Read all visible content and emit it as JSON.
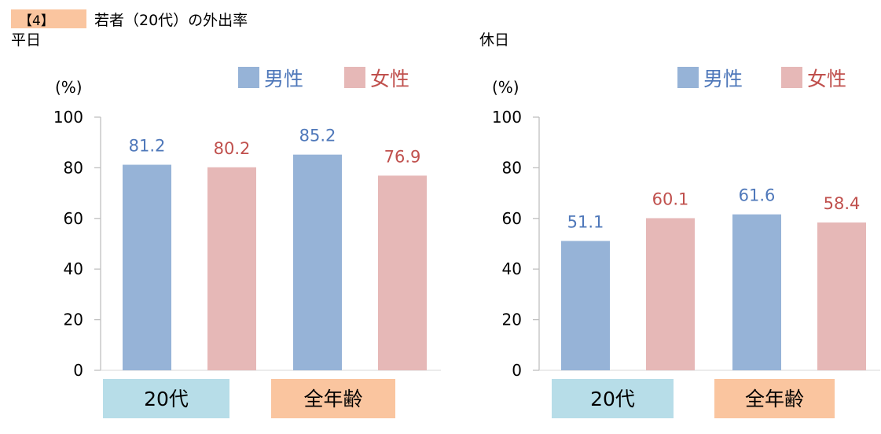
{
  "header": {
    "badge": "【4】",
    "title": "若者（20代）の外出率"
  },
  "colors": {
    "male": "#96b3d7",
    "female": "#e6b8b7",
    "male_text": "#4f78ba",
    "female_text": "#c0504d",
    "cat_20s": "#b7dde8",
    "cat_all": "#fac59f",
    "badge": "#fac59f"
  },
  "chart_data": [
    {
      "type": "bar",
      "title": "平日",
      "ylabel": "(%)",
      "ylim": [
        0,
        100
      ],
      "yticks": [
        0,
        20,
        40,
        60,
        80,
        100
      ],
      "categories": [
        "20代",
        "全年齢"
      ],
      "legend_position": "top-right",
      "series": [
        {
          "name": "男性",
          "values": [
            81.2,
            85.2
          ]
        },
        {
          "name": "女性",
          "values": [
            80.2,
            76.9
          ]
        }
      ]
    },
    {
      "type": "bar",
      "title": "休日",
      "ylabel": "(%)",
      "ylim": [
        0,
        100
      ],
      "yticks": [
        0,
        20,
        40,
        60,
        80,
        100
      ],
      "categories": [
        "20代",
        "全年齢"
      ],
      "legend_position": "top-right",
      "series": [
        {
          "name": "男性",
          "values": [
            51.1,
            61.6
          ]
        },
        {
          "name": "女性",
          "values": [
            60.1,
            58.4
          ]
        }
      ]
    }
  ]
}
